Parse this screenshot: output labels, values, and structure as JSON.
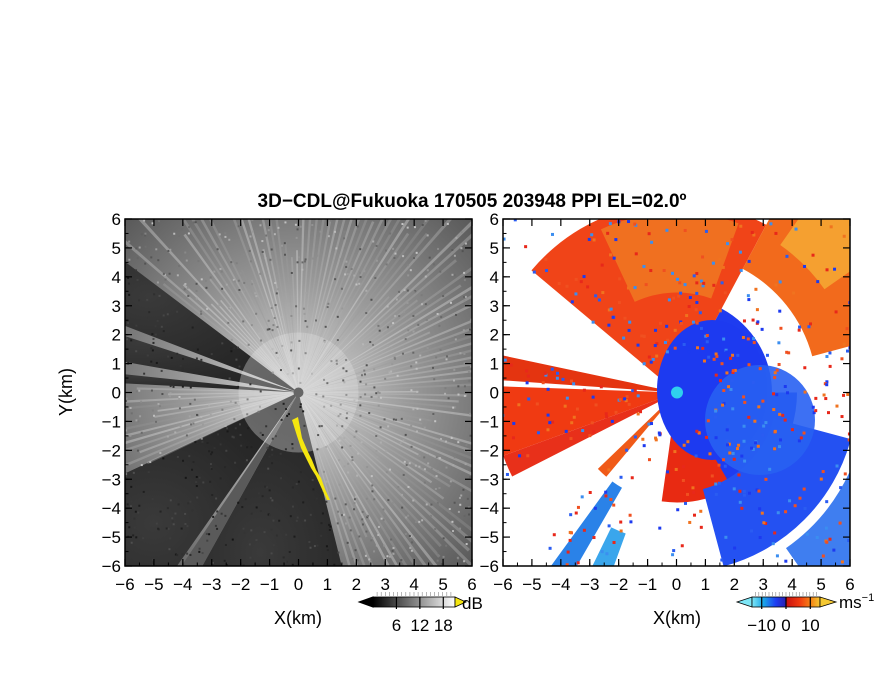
{
  "title": "3D−CDL@Fukuoka 170505 203948 PPI EL=02.0º",
  "colors": {
    "yellow": "#f5e60f",
    "cyan": "#2fd0ee",
    "white": "#ffffff",
    "black": "#000000"
  },
  "chart_data": [
    {
      "type": "heatmap",
      "panel": "left",
      "xlabel": "X(km)",
      "ylabel": "Y(km)",
      "xlim": [
        -6,
        6
      ],
      "ylim": [
        -6,
        6
      ],
      "xticks": [
        -6,
        -5,
        -4,
        -3,
        -2,
        -1,
        0,
        1,
        2,
        3,
        4,
        5,
        6
      ],
      "yticks": [
        6,
        5,
        4,
        3,
        2,
        1,
        0,
        -1,
        -2,
        -3,
        -4,
        -5,
        -6
      ],
      "xtick_labels": [
        "−6",
        "−5",
        "−4",
        "−3",
        "−2",
        "−1",
        "0",
        "1",
        "2",
        "3",
        "4",
        "5",
        "6"
      ],
      "ytick_labels": [
        "6",
        "5",
        "4",
        "3",
        "2",
        "1",
        "0",
        "−1",
        "−2",
        "−3",
        "−4",
        "−5",
        "−6"
      ],
      "colormap": "grayscale",
      "colorbar": {
        "unit": "dB",
        "ticks": [
          6,
          12,
          18
        ],
        "tick_labels": [
          "6",
          "12",
          "18"
        ],
        "range": [
          0,
          21
        ]
      }
    },
    {
      "type": "heatmap",
      "panel": "right",
      "xlabel": "X(km)",
      "ylabel": "",
      "xlim": [
        -6,
        6
      ],
      "ylim": [
        -6,
        6
      ],
      "xticks": [
        -6,
        -5,
        -4,
        -3,
        -2,
        -1,
        0,
        1,
        2,
        3,
        4,
        5,
        6
      ],
      "yticks": [
        6,
        5,
        4,
        3,
        2,
        1,
        0,
        -1,
        -2,
        -3,
        -4,
        -5,
        -6
      ],
      "xtick_labels": [
        "−6",
        "−5",
        "−4",
        "−3",
        "−2",
        "−1",
        "0",
        "1",
        "2",
        "3",
        "4",
        "5",
        "6"
      ],
      "ytick_labels": [
        "6",
        "5",
        "4",
        "3",
        "2",
        "1",
        "0",
        "−1",
        "−2",
        "−3",
        "−4",
        "−5",
        "−6"
      ],
      "colormap": "diverging cyan-blue-red-orange",
      "colorbar": {
        "unit": "ms",
        "unit_exponent": "−1",
        "ticks": [
          -10,
          0,
          10
        ],
        "tick_labels": [
          "−10",
          "0",
          "10"
        ],
        "range": [
          -14,
          14
        ]
      }
    }
  ]
}
